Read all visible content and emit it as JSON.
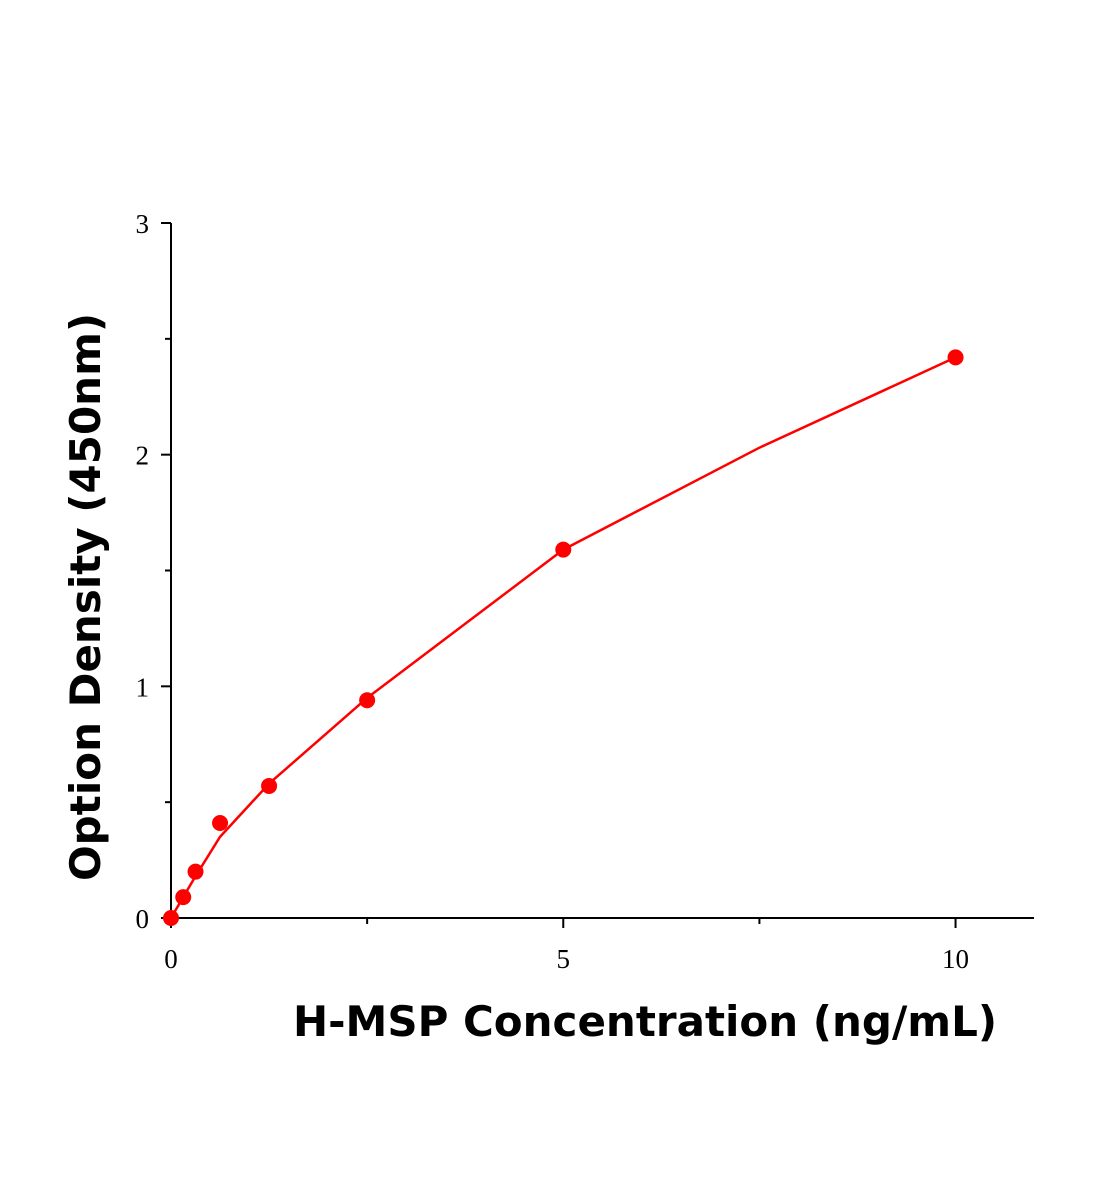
{
  "chart_data": {
    "type": "scatter",
    "x_label": "H-MSP Concentration (ng/mL)",
    "y_label": "Option Density (450nm)",
    "xlim": [
      0,
      11
    ],
    "ylim": [
      0,
      3
    ],
    "xticks": [
      0,
      5,
      10
    ],
    "yticks": [
      0,
      1,
      2,
      3
    ],
    "xminor": [
      2.5,
      7.5
    ],
    "yminor": [
      0.5,
      1.5,
      2.5
    ],
    "series": [
      {
        "type": "scatter",
        "color": "#ff0000",
        "x": [
          0,
          0.156,
          0.3125,
          0.625,
          1.25,
          2.5,
          5,
          10
        ],
        "values": [
          0,
          0.09,
          0.2,
          0.41,
          0.57,
          0.94,
          1.59,
          2.42
        ]
      },
      {
        "type": "line",
        "color": "#ff0000",
        "x": [
          0,
          0.156,
          0.3125,
          0.625,
          1.25,
          2.5,
          5,
          7.5,
          10
        ],
        "values": [
          0,
          0.09,
          0.18,
          0.35,
          0.58,
          0.95,
          1.59,
          2.03,
          2.42
        ]
      }
    ]
  }
}
